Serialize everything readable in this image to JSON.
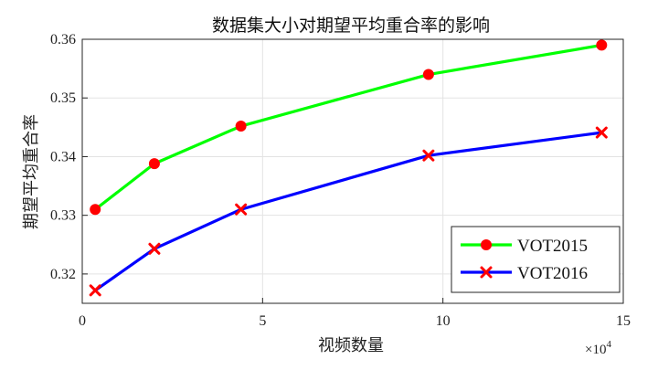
{
  "chart_data": {
    "type": "line",
    "title": "数据集大小对期望平均重合率的影响",
    "xlabel": "视频数量",
    "ylabel": "期望平均重合率",
    "x_exponent_label": "×10",
    "x_exponent_power": "4",
    "xlim": [
      0,
      15
    ],
    "ylim": [
      0.315,
      0.36
    ],
    "xticks": [
      0,
      5,
      10,
      15
    ],
    "xtick_labels": [
      "0",
      "5",
      "10",
      "15"
    ],
    "yticks": [
      0.32,
      0.33,
      0.34,
      0.35,
      0.36
    ],
    "ytick_labels": [
      "0.32",
      "0.33",
      "0.34",
      "0.35",
      "0.36"
    ],
    "grid": true,
    "legend_position": "bottom-right",
    "series": [
      {
        "name": "VOT2015",
        "color": "#00ff00",
        "marker": "circle",
        "marker_color": "#ff0000",
        "x": [
          0.36,
          2.0,
          4.4,
          9.6,
          14.4
        ],
        "y": [
          0.331,
          0.3388,
          0.3452,
          0.354,
          0.359
        ]
      },
      {
        "name": "VOT2016",
        "color": "#0000ff",
        "marker": "x",
        "marker_color": "#ff0000",
        "x": [
          0.36,
          2.0,
          4.4,
          9.6,
          14.4
        ],
        "y": [
          0.3172,
          0.3243,
          0.331,
          0.3402,
          0.3441
        ]
      }
    ]
  }
}
